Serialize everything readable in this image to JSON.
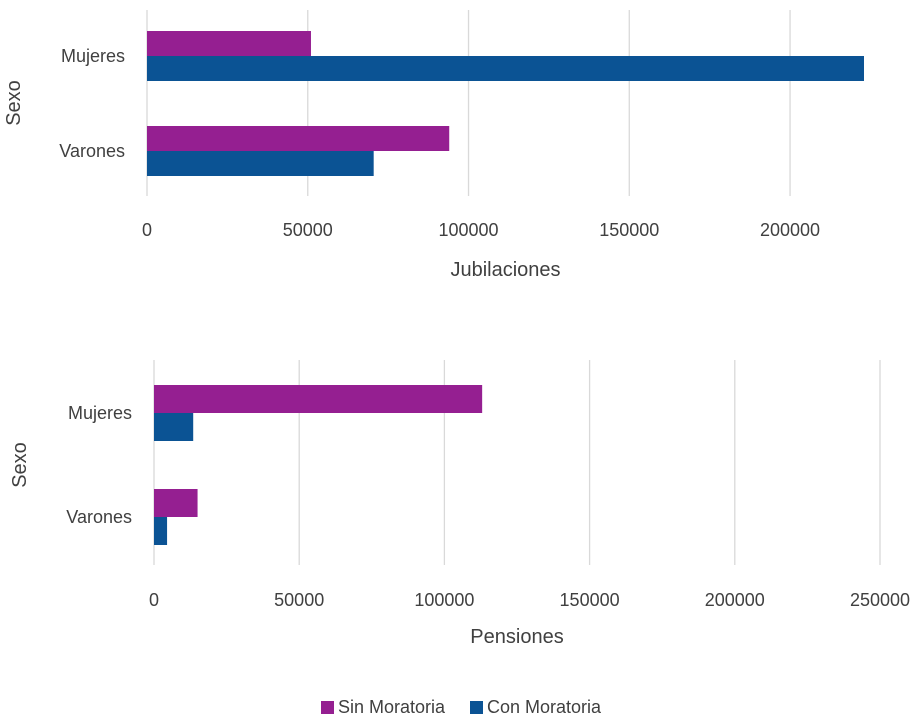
{
  "colors": {
    "sin": "#951f91",
    "con": "#0b5394",
    "grid": "#d9d9d9",
    "text": "#404040"
  },
  "legend": {
    "items": [
      "Sin Moratoria",
      "Con Moratoria"
    ]
  },
  "chart_data": [
    {
      "type": "bar",
      "orientation": "horizontal",
      "categories": [
        "Mujeres",
        "Varones"
      ],
      "series": [
        {
          "name": "Sin Moratoria",
          "values": [
            51000,
            94000
          ]
        },
        {
          "name": "Con Moratoria",
          "values": [
            223000,
            70500
          ]
        }
      ],
      "xlabel": "Jubilaciones",
      "ylabel": "Sexo",
      "xlim": [
        0,
        223000
      ],
      "xticks": [
        "0",
        "50000",
        "100000",
        "150000",
        "200000"
      ],
      "grid": true
    },
    {
      "type": "bar",
      "orientation": "horizontal",
      "categories": [
        "Mujeres",
        "Varones"
      ],
      "series": [
        {
          "name": "Sin Moratoria",
          "values": [
            113000,
            15000
          ]
        },
        {
          "name": "Con Moratoria",
          "values": [
            13500,
            4500
          ]
        }
      ],
      "xlabel": "Pensiones",
      "ylabel": "Sexo",
      "xlim": [
        0,
        250000
      ],
      "xticks": [
        "0",
        "50000",
        "100000",
        "150000",
        "200000",
        "250000"
      ],
      "grid": true
    }
  ]
}
